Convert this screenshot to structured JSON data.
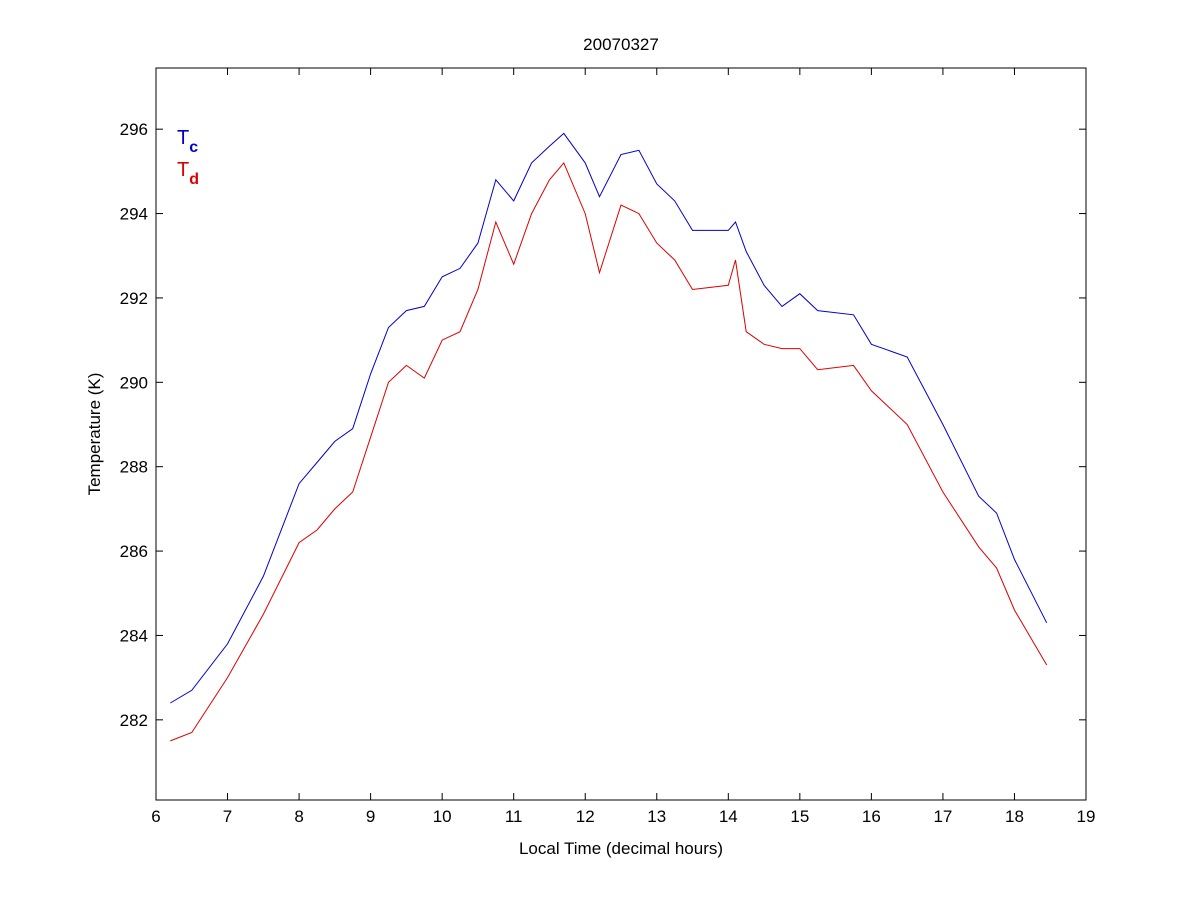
{
  "chart_data": {
    "type": "line",
    "title": "20070327",
    "xlabel": "Local Time (decimal hours)",
    "ylabel": "Temperature (K)",
    "xlim": [
      6,
      19
    ],
    "ylim": [
      280.1,
      297.45
    ],
    "xticks": [
      6,
      7,
      8,
      9,
      10,
      11,
      12,
      13,
      14,
      15,
      16,
      17,
      18,
      19
    ],
    "yticks": [
      282,
      284,
      286,
      288,
      290,
      292,
      294,
      296
    ],
    "grid": false,
    "legend_placement": "top-left",
    "series": [
      {
        "name": "T",
        "subscript": "c",
        "color": "#0000cc",
        "x": [
          6.2,
          6.5,
          7.0,
          7.5,
          8.0,
          8.25,
          8.5,
          8.75,
          9.0,
          9.25,
          9.5,
          9.75,
          10.0,
          10.25,
          10.5,
          10.75,
          11.0,
          11.25,
          11.5,
          11.7,
          12.0,
          12.2,
          12.5,
          12.75,
          13.0,
          13.25,
          13.5,
          14.0,
          14.1,
          14.25,
          14.5,
          14.75,
          15.0,
          15.25,
          15.75,
          16.0,
          16.5,
          17.0,
          17.5,
          17.75,
          18.0,
          18.45
        ],
        "y": [
          282.4,
          282.7,
          283.8,
          285.4,
          287.6,
          288.1,
          288.6,
          288.9,
          290.2,
          291.3,
          291.7,
          291.8,
          292.5,
          292.7,
          293.3,
          294.8,
          294.3,
          295.2,
          295.6,
          295.9,
          295.2,
          294.4,
          295.4,
          295.5,
          294.7,
          294.3,
          293.6,
          293.6,
          293.8,
          293.1,
          292.3,
          291.8,
          292.1,
          291.7,
          291.6,
          290.9,
          290.6,
          289.0,
          287.3,
          286.9,
          285.8,
          284.3
        ]
      },
      {
        "name": "T",
        "subscript": "d",
        "color": "#dd0000",
        "x": [
          6.2,
          6.5,
          7.0,
          7.5,
          8.0,
          8.25,
          8.5,
          8.75,
          9.0,
          9.25,
          9.5,
          9.75,
          10.0,
          10.25,
          10.5,
          10.75,
          11.0,
          11.25,
          11.5,
          11.7,
          12.0,
          12.2,
          12.5,
          12.75,
          13.0,
          13.25,
          13.5,
          14.0,
          14.1,
          14.25,
          14.5,
          14.75,
          15.0,
          15.25,
          15.75,
          16.0,
          16.5,
          17.0,
          17.5,
          17.75,
          18.0,
          18.45
        ],
        "y": [
          281.5,
          281.7,
          283.0,
          284.5,
          286.2,
          286.5,
          287.0,
          287.4,
          288.7,
          290.0,
          290.4,
          290.1,
          291.0,
          291.2,
          292.2,
          293.8,
          292.8,
          294.0,
          294.8,
          295.2,
          294.0,
          292.6,
          294.2,
          294.0,
          293.3,
          292.9,
          292.2,
          292.3,
          292.9,
          291.2,
          290.9,
          290.8,
          290.8,
          290.3,
          290.4,
          289.8,
          289.0,
          287.4,
          286.1,
          285.6,
          284.6,
          283.3
        ]
      }
    ]
  }
}
